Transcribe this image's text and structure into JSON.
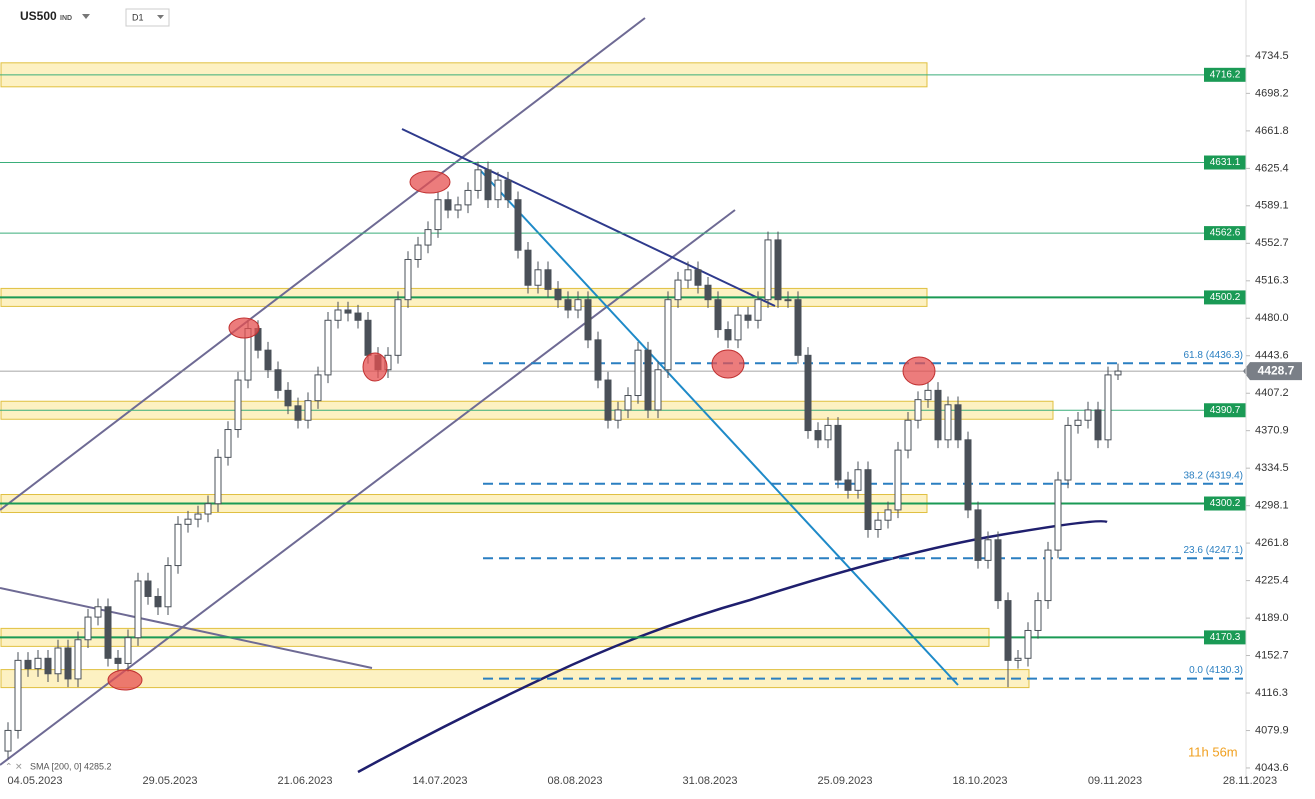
{
  "header": {
    "symbol": "US500",
    "market": "IND",
    "timeframe": "D1"
  },
  "chart_data": {
    "type": "candlestick",
    "ylim": [
      4022.2,
      4788.8
    ],
    "yticks": [
      4734.5,
      4698.2,
      4661.8,
      4625.4,
      4589.1,
      4552.7,
      4516.3,
      {
        "value": 4480.0,
        "label": "4480.0"
      },
      4443.6,
      4407.2,
      4370.9,
      4334.5,
      4298.1,
      4261.8,
      4225.4,
      {
        "value": 4189.0,
        "label": "4189.0"
      },
      4152.7,
      4116.3,
      4079.9,
      4043.6
    ],
    "x_labels": [
      "04.05.2023",
      "29.05.2023",
      "21.06.2023",
      "14.07.2023",
      "08.08.2023",
      "31.08.2023",
      "25.09.2023",
      "18.10.2023",
      "09.11.2023",
      "28.11.2023"
    ],
    "candles": [
      [
        4060,
        4088,
        4052,
        4080
      ],
      [
        4080,
        4156,
        4072,
        4148
      ],
      [
        4148,
        4156,
        4132,
        4140
      ],
      [
        4140,
        4158,
        4132,
        4150
      ],
      [
        4150,
        4158,
        4127,
        4135
      ],
      [
        4135,
        4168,
        4127,
        4160
      ],
      [
        4160,
        4168,
        4122,
        4130
      ],
      [
        4130,
        4176,
        4122,
        4168
      ],
      [
        4168,
        4198,
        4160,
        4190
      ],
      [
        4190,
        4208,
        4182,
        4200
      ],
      [
        4200,
        4208,
        4142,
        4150
      ],
      [
        4150,
        4158,
        4137,
        4145
      ],
      [
        4145,
        4178,
        4137,
        4170
      ],
      [
        4170,
        4233,
        4162,
        4225
      ],
      [
        4225,
        4233,
        4202,
        4210
      ],
      [
        4210,
        4218,
        4192,
        4200
      ],
      [
        4200,
        4248,
        4192,
        4240
      ],
      [
        4240,
        4288,
        4232,
        4280
      ],
      [
        4280,
        4293,
        4272,
        4285
      ],
      [
        4285,
        4298,
        4277,
        4290
      ],
      [
        4290,
        4308,
        4282,
        4300
      ],
      [
        4300,
        4353,
        4292,
        4345
      ],
      [
        4345,
        4380,
        4337,
        4372
      ],
      [
        4372,
        4428,
        4364,
        4420
      ],
      [
        4420,
        4478,
        4412,
        4470
      ],
      [
        4470,
        4478,
        4441,
        4449
      ],
      [
        4449,
        4457,
        4422,
        4430
      ],
      [
        4430,
        4438,
        4402,
        4410
      ],
      [
        4410,
        4418,
        4387,
        4395
      ],
      [
        4395,
        4403,
        4373,
        4381
      ],
      [
        4381,
        4408,
        4373,
        4400
      ],
      [
        4400,
        4433,
        4392,
        4425
      ],
      [
        4425,
        4486,
        4417,
        4478
      ],
      [
        4478,
        4496,
        4470,
        4488
      ],
      [
        4488,
        4496,
        4477,
        4485
      ],
      [
        4485,
        4493,
        4470,
        4478
      ],
      [
        4478,
        4486,
        4436,
        4444
      ],
      [
        4444,
        4452,
        4422,
        4430
      ],
      [
        4430,
        4452,
        4422,
        4444
      ],
      [
        4444,
        4506,
        4436,
        4498
      ],
      [
        4498,
        4545,
        4490,
        4537
      ],
      [
        4537,
        4559,
        4529,
        4551
      ],
      [
        4551,
        4574,
        4543,
        4566
      ],
      [
        4566,
        4603,
        4558,
        4595
      ],
      [
        4595,
        4603,
        4577,
        4585
      ],
      [
        4585,
        4598,
        4577,
        4590
      ],
      [
        4590,
        4612,
        4582,
        4604
      ],
      [
        4604,
        4632,
        4596,
        4624
      ],
      [
        4624,
        4632,
        4587,
        4595
      ],
      [
        4595,
        4622,
        4587,
        4614
      ],
      [
        4614,
        4622,
        4587,
        4595
      ],
      [
        4595,
        4603,
        4538,
        4546
      ],
      [
        4546,
        4554,
        4504,
        4512
      ],
      [
        4512,
        4535,
        4504,
        4527
      ],
      [
        4527,
        4535,
        4500,
        4508
      ],
      [
        4508,
        4516,
        4490,
        4498
      ],
      [
        4498,
        4506,
        4480,
        4488
      ],
      [
        4488,
        4506,
        4480,
        4498
      ],
      [
        4498,
        4506,
        4451,
        4459
      ],
      [
        4459,
        4467,
        4412,
        4420
      ],
      [
        4420,
        4428,
        4373,
        4381
      ],
      [
        4381,
        4399,
        4373,
        4391
      ],
      [
        4391,
        4413,
        4383,
        4405
      ],
      [
        4405,
        4457,
        4397,
        4449
      ],
      [
        4449,
        4457,
        4383,
        4391
      ],
      [
        4391,
        4438,
        4383,
        4430
      ],
      [
        4430,
        4506,
        4422,
        4498
      ],
      [
        4498,
        4525,
        4490,
        4517
      ],
      [
        4517,
        4535,
        4509,
        4527
      ],
      [
        4527,
        4535,
        4504,
        4512
      ],
      [
        4512,
        4520,
        4490,
        4498
      ],
      [
        4498,
        4506,
        4461,
        4469
      ],
      [
        4469,
        4477,
        4451,
        4459
      ],
      [
        4459,
        4491,
        4451,
        4483
      ],
      [
        4483,
        4491,
        4470,
        4478
      ],
      [
        4478,
        4506,
        4470,
        4498
      ],
      [
        4498,
        4564,
        4490,
        4556
      ],
      [
        4556,
        4564,
        4490,
        4498
      ],
      [
        4498,
        4506,
        4490,
        4498
      ],
      [
        4498,
        4506,
        4436,
        4444
      ],
      [
        4444,
        4452,
        4363,
        4371
      ],
      [
        4371,
        4379,
        4354,
        4362
      ],
      [
        4362,
        4384,
        4354,
        4376
      ],
      [
        4376,
        4384,
        4315,
        4323
      ],
      [
        4323,
        4331,
        4305,
        4313
      ],
      [
        4313,
        4341,
        4305,
        4333
      ],
      [
        4333,
        4341,
        4267,
        4275
      ],
      [
        4275,
        4292,
        4267,
        4284
      ],
      [
        4284,
        4302,
        4276,
        4294
      ],
      [
        4294,
        4360,
        4286,
        4352
      ],
      [
        4352,
        4389,
        4344,
        4381
      ],
      [
        4381,
        4409,
        4373,
        4401
      ],
      [
        4401,
        4418,
        4393,
        4410
      ],
      [
        4410,
        4418,
        4354,
        4362
      ],
      [
        4362,
        4404,
        4354,
        4396
      ],
      [
        4396,
        4404,
        4354,
        4362
      ],
      [
        4362,
        4370,
        4286,
        4294
      ],
      [
        4294,
        4302,
        4237,
        4245
      ],
      [
        4245,
        4273,
        4237,
        4265
      ],
      [
        4265,
        4273,
        4198,
        4206
      ],
      [
        4206,
        4214,
        4122,
        4148
      ],
      [
        4148,
        4158,
        4140,
        4150
      ],
      [
        4150,
        4185,
        4142,
        4177
      ],
      [
        4177,
        4214,
        4169,
        4206
      ],
      [
        4206,
        4263,
        4198,
        4255
      ],
      [
        4255,
        4331,
        4247,
        4323
      ],
      [
        4323,
        4384,
        4315,
        4376
      ],
      [
        4376,
        4389,
        4368,
        4381
      ],
      [
        4381,
        4399,
        4373,
        4391
      ],
      [
        4391,
        4399,
        4354,
        4362
      ],
      [
        4362,
        4433,
        4354,
        4425
      ],
      [
        4425,
        4436,
        4420,
        4428.7
      ]
    ],
    "levels": [
      4716.2,
      4631.1,
      4562.6,
      4500.2,
      4390.7,
      4300.2,
      4170.3
    ],
    "fib_levels": [
      {
        "value": 4436.3,
        "label": "61.8 (4436.3)"
      },
      {
        "value": 4319.4,
        "label": "38.2 (4319.4)"
      },
      {
        "value": 4247.1,
        "label": "23.6 (4247.1)"
      },
      {
        "value": 4130.3,
        "label": "0.0 (4130.3)"
      }
    ],
    "last_price": 4428.7,
    "indicator": "SMA [200, 0] 4285.2",
    "countdown": "11h 56m"
  }
}
